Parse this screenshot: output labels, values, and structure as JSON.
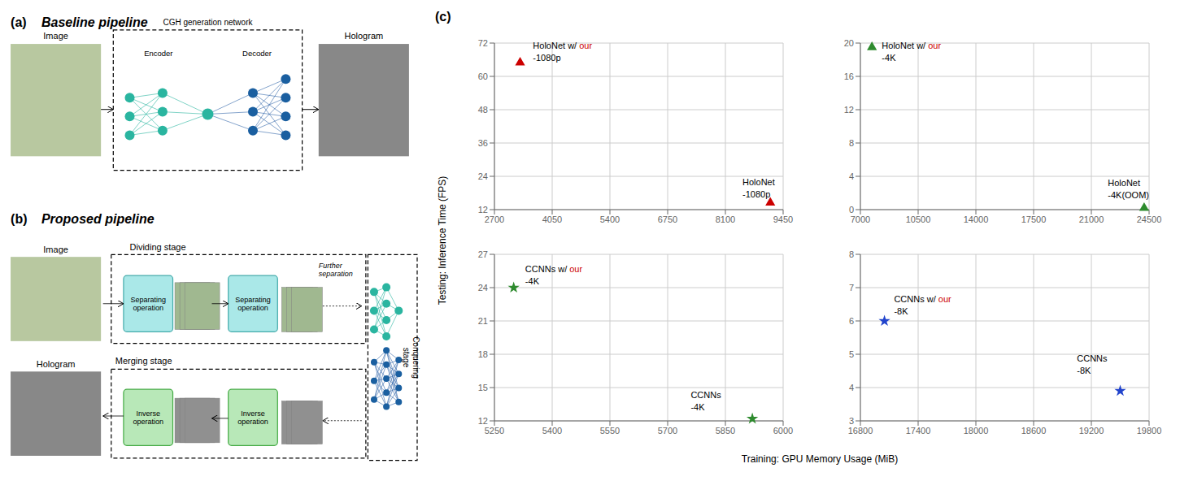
{
  "panel_label": "(c)",
  "xlabel": "Training: GPU Memory Usage (MiB)",
  "ylabel": "Testing: Inference Time (FPS)",
  "annotations": [
    "(a)",
    "Baseline pipeline",
    "Image",
    "CGH generation network",
    "Encoder",
    "Decoder",
    "Hologram",
    "(b)",
    "Proposed pipeline",
    "Image",
    "Dividing stage",
    "Separating\noperation",
    "Separating\noperation",
    "Further\nseparation",
    "Merging stage",
    "Hologram",
    "Inverse\noperation",
    "Inverse\noperation",
    "Conquering\nstage"
  ],
  "chart_data": [
    {
      "type": "scatter",
      "xlim": [
        2700,
        9450
      ],
      "ylim": [
        12,
        72
      ],
      "xticks": [
        2700,
        4050,
        5400,
        6750,
        8100,
        9450
      ],
      "yticks": [
        12,
        24,
        36,
        48,
        60,
        72
      ],
      "grid": true,
      "series": [
        {
          "x": [
            3300,
            9150
          ],
          "values": [
            65,
            14.5
          ],
          "color": "#cc0000",
          "marker": "triangle"
        }
      ],
      "annotations": [
        {
          "x": 3600,
          "y": 69,
          "text": [
            "HoloNet w/ our",
            "-1080p"
          ],
          "highlight": "our",
          "color": "#cc0000"
        },
        {
          "x": 8500,
          "y": 20,
          "text": [
            "HoloNet",
            "-1080p"
          ]
        }
      ]
    },
    {
      "type": "scatter",
      "xlim": [
        7000,
        24500
      ],
      "ylim": [
        0,
        20
      ],
      "xticks": [
        7000,
        10500,
        14000,
        17500,
        21000,
        24500
      ],
      "yticks": [
        0,
        4,
        8,
        12,
        16,
        20
      ],
      "grid": true,
      "series": [
        {
          "x": [
            7700,
            24200
          ],
          "values": [
            19.5,
            0.2
          ],
          "color": "#2e8b2e",
          "marker": "triangle"
        }
      ],
      "annotations": [
        {
          "x": 8300,
          "y": 19.0,
          "text": [
            "HoloNet w/ our",
            "-4K"
          ],
          "highlight": "our",
          "color": "#cc0000"
        },
        {
          "x": 22000,
          "y": 2.5,
          "text": [
            "HoloNet",
            "-4K(OOM)"
          ]
        }
      ]
    },
    {
      "type": "scatter",
      "xlim": [
        5250,
        6000
      ],
      "ylim": [
        12,
        27
      ],
      "xticks": [
        5250,
        5400,
        5550,
        5700,
        5850,
        6000
      ],
      "yticks": [
        12,
        15,
        18,
        21,
        24,
        27
      ],
      "grid": true,
      "series": [
        {
          "x": [
            5300,
            5920
          ],
          "values": [
            24,
            12.2
          ],
          "color": "#2e8b2e",
          "marker": "star"
        }
      ],
      "annotations": [
        {
          "x": 5330,
          "y": 25.2,
          "text": [
            "CCNNs w/ our",
            "-4K"
          ],
          "highlight": "our",
          "color": "#cc0000"
        },
        {
          "x": 5760,
          "y": 13.8,
          "text": [
            "CCNNs",
            "-4K"
          ]
        }
      ]
    },
    {
      "type": "scatter",
      "xlim": [
        16800,
        19800
      ],
      "ylim": [
        3,
        8
      ],
      "xticks": [
        16800,
        17400,
        18000,
        18600,
        19200,
        19800
      ],
      "yticks": [
        3,
        4,
        5,
        6,
        7,
        8
      ],
      "grid": true,
      "series": [
        {
          "x": [
            17050,
            19500
          ],
          "values": [
            6.0,
            3.9
          ],
          "color": "#2244cc",
          "marker": "star"
        }
      ],
      "annotations": [
        {
          "x": 17150,
          "y": 6.5,
          "text": [
            "CCNNs w/ our",
            "-8K"
          ],
          "highlight": "our",
          "color": "#cc0000"
        },
        {
          "x": 19050,
          "y": 4.7,
          "text": [
            "CCNNs",
            "-8K"
          ]
        }
      ]
    }
  ]
}
